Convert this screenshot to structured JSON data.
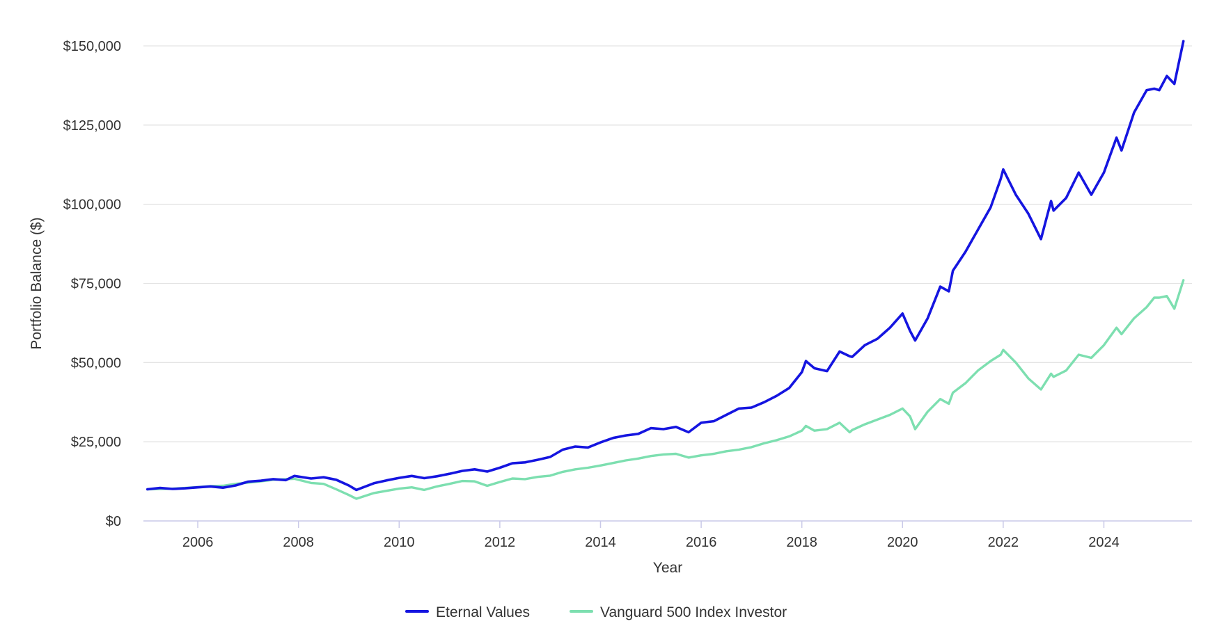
{
  "chart_data": {
    "type": "line",
    "title": "",
    "xlabel": "Year",
    "ylabel": "Portfolio Balance ($)",
    "xlim": [
      2004.92,
      2025.75
    ],
    "ylim": [
      0,
      150000
    ],
    "x_ticks": [
      2006,
      2008,
      2010,
      2012,
      2014,
      2016,
      2018,
      2020,
      2022,
      2024
    ],
    "y_ticks": [
      0,
      25000,
      50000,
      75000,
      100000,
      125000,
      150000
    ],
    "y_tick_labels": [
      "$0",
      "$25,000",
      "$50,000",
      "$75,000",
      "$100,000",
      "$125,000",
      "$150,000"
    ],
    "grid": true,
    "legend_position": "bottom-center",
    "series": [
      {
        "name": "Eternal Values",
        "color": "#1515e0",
        "points": [
          [
            2005.0,
            10000
          ],
          [
            2005.25,
            10400
          ],
          [
            2005.5,
            10100
          ],
          [
            2005.75,
            10300
          ],
          [
            2006.0,
            10600
          ],
          [
            2006.25,
            10900
          ],
          [
            2006.5,
            10500
          ],
          [
            2006.75,
            11200
          ],
          [
            2007.0,
            12400
          ],
          [
            2007.25,
            12700
          ],
          [
            2007.5,
            13200
          ],
          [
            2007.75,
            12900
          ],
          [
            2007.92,
            14200
          ],
          [
            2008.25,
            13400
          ],
          [
            2008.5,
            13800
          ],
          [
            2008.75,
            13000
          ],
          [
            2009.0,
            11200
          ],
          [
            2009.15,
            9800
          ],
          [
            2009.5,
            11900
          ],
          [
            2009.75,
            12800
          ],
          [
            2010.0,
            13600
          ],
          [
            2010.25,
            14200
          ],
          [
            2010.5,
            13500
          ],
          [
            2010.75,
            14100
          ],
          [
            2011.0,
            14900
          ],
          [
            2011.25,
            15800
          ],
          [
            2011.5,
            16300
          ],
          [
            2011.75,
            15600
          ],
          [
            2012.0,
            16800
          ],
          [
            2012.25,
            18200
          ],
          [
            2012.5,
            18500
          ],
          [
            2012.75,
            19300
          ],
          [
            2013.0,
            20200
          ],
          [
            2013.25,
            22500
          ],
          [
            2013.5,
            23500
          ],
          [
            2013.75,
            23200
          ],
          [
            2014.0,
            24800
          ],
          [
            2014.25,
            26200
          ],
          [
            2014.5,
            27000
          ],
          [
            2014.75,
            27500
          ],
          [
            2015.0,
            29300
          ],
          [
            2015.25,
            29000
          ],
          [
            2015.5,
            29700
          ],
          [
            2015.75,
            28000
          ],
          [
            2016.0,
            31000
          ],
          [
            2016.25,
            31500
          ],
          [
            2016.5,
            33500
          ],
          [
            2016.75,
            35500
          ],
          [
            2017.0,
            35800
          ],
          [
            2017.25,
            37500
          ],
          [
            2017.5,
            39500
          ],
          [
            2017.75,
            42000
          ],
          [
            2018.0,
            47000
          ],
          [
            2018.08,
            50500
          ],
          [
            2018.25,
            48200
          ],
          [
            2018.5,
            47300
          ],
          [
            2018.75,
            53500
          ],
          [
            2018.95,
            52000
          ],
          [
            2019.0,
            51800
          ],
          [
            2019.25,
            55500
          ],
          [
            2019.5,
            57500
          ],
          [
            2019.75,
            61000
          ],
          [
            2020.0,
            65500
          ],
          [
            2020.15,
            60000
          ],
          [
            2020.25,
            57000
          ],
          [
            2020.5,
            64000
          ],
          [
            2020.75,
            74000
          ],
          [
            2020.92,
            72500
          ],
          [
            2021.0,
            79000
          ],
          [
            2021.25,
            85000
          ],
          [
            2021.5,
            92000
          ],
          [
            2021.75,
            99000
          ],
          [
            2021.95,
            108000
          ],
          [
            2022.0,
            111000
          ],
          [
            2022.25,
            103000
          ],
          [
            2022.5,
            97000
          ],
          [
            2022.75,
            89000
          ],
          [
            2022.95,
            101000
          ],
          [
            2023.0,
            98000
          ],
          [
            2023.25,
            102000
          ],
          [
            2023.5,
            110000
          ],
          [
            2023.75,
            103000
          ],
          [
            2024.0,
            110000
          ],
          [
            2024.25,
            121000
          ],
          [
            2024.35,
            117000
          ],
          [
            2024.6,
            129000
          ],
          [
            2024.85,
            136000
          ],
          [
            2025.0,
            136500
          ],
          [
            2025.1,
            136000
          ],
          [
            2025.25,
            140500
          ],
          [
            2025.4,
            138000
          ],
          [
            2025.58,
            151500
          ]
        ]
      },
      {
        "name": "Vanguard 500 Index Investor",
        "color": "#7ddfb0",
        "points": [
          [
            2005.0,
            10000
          ],
          [
            2005.25,
            10100
          ],
          [
            2005.5,
            10200
          ],
          [
            2005.75,
            10400
          ],
          [
            2006.0,
            10700
          ],
          [
            2006.25,
            11000
          ],
          [
            2006.5,
            11100
          ],
          [
            2006.75,
            11700
          ],
          [
            2007.0,
            12100
          ],
          [
            2007.25,
            12500
          ],
          [
            2007.5,
            13000
          ],
          [
            2007.75,
            13200
          ],
          [
            2007.92,
            13300
          ],
          [
            2008.25,
            12000
          ],
          [
            2008.5,
            11700
          ],
          [
            2008.75,
            10000
          ],
          [
            2009.0,
            8200
          ],
          [
            2009.15,
            7000
          ],
          [
            2009.5,
            8800
          ],
          [
            2009.75,
            9500
          ],
          [
            2010.0,
            10200
          ],
          [
            2010.25,
            10600
          ],
          [
            2010.5,
            9800
          ],
          [
            2010.75,
            10900
          ],
          [
            2011.0,
            11700
          ],
          [
            2011.25,
            12600
          ],
          [
            2011.5,
            12500
          ],
          [
            2011.75,
            11100
          ],
          [
            2012.0,
            12300
          ],
          [
            2012.25,
            13400
          ],
          [
            2012.5,
            13200
          ],
          [
            2012.75,
            13900
          ],
          [
            2013.0,
            14300
          ],
          [
            2013.25,
            15500
          ],
          [
            2013.5,
            16300
          ],
          [
            2013.75,
            16800
          ],
          [
            2014.0,
            17500
          ],
          [
            2014.25,
            18300
          ],
          [
            2014.5,
            19100
          ],
          [
            2014.75,
            19700
          ],
          [
            2015.0,
            20500
          ],
          [
            2015.25,
            21000
          ],
          [
            2015.5,
            21200
          ],
          [
            2015.75,
            20000
          ],
          [
            2016.0,
            20700
          ],
          [
            2016.25,
            21200
          ],
          [
            2016.5,
            22000
          ],
          [
            2016.75,
            22500
          ],
          [
            2017.0,
            23300
          ],
          [
            2017.25,
            24500
          ],
          [
            2017.5,
            25500
          ],
          [
            2017.75,
            26700
          ],
          [
            2018.0,
            28500
          ],
          [
            2018.08,
            30000
          ],
          [
            2018.25,
            28500
          ],
          [
            2018.5,
            29000
          ],
          [
            2018.75,
            31000
          ],
          [
            2018.95,
            28000
          ],
          [
            2019.0,
            28700
          ],
          [
            2019.25,
            30500
          ],
          [
            2019.5,
            32000
          ],
          [
            2019.75,
            33500
          ],
          [
            2020.0,
            35500
          ],
          [
            2020.15,
            33000
          ],
          [
            2020.25,
            29000
          ],
          [
            2020.5,
            34500
          ],
          [
            2020.75,
            38500
          ],
          [
            2020.92,
            37000
          ],
          [
            2021.0,
            40500
          ],
          [
            2021.25,
            43500
          ],
          [
            2021.5,
            47500
          ],
          [
            2021.75,
            50500
          ],
          [
            2021.95,
            52500
          ],
          [
            2022.0,
            54000
          ],
          [
            2022.25,
            50000
          ],
          [
            2022.5,
            45000
          ],
          [
            2022.75,
            41500
          ],
          [
            2022.95,
            46500
          ],
          [
            2023.0,
            45500
          ],
          [
            2023.25,
            47500
          ],
          [
            2023.5,
            52500
          ],
          [
            2023.75,
            51500
          ],
          [
            2024.0,
            55500
          ],
          [
            2024.25,
            61000
          ],
          [
            2024.35,
            59000
          ],
          [
            2024.6,
            64000
          ],
          [
            2024.85,
            67500
          ],
          [
            2025.0,
            70500
          ],
          [
            2025.1,
            70500
          ],
          [
            2025.25,
            71000
          ],
          [
            2025.4,
            67000
          ],
          [
            2025.58,
            76000
          ]
        ]
      }
    ]
  }
}
